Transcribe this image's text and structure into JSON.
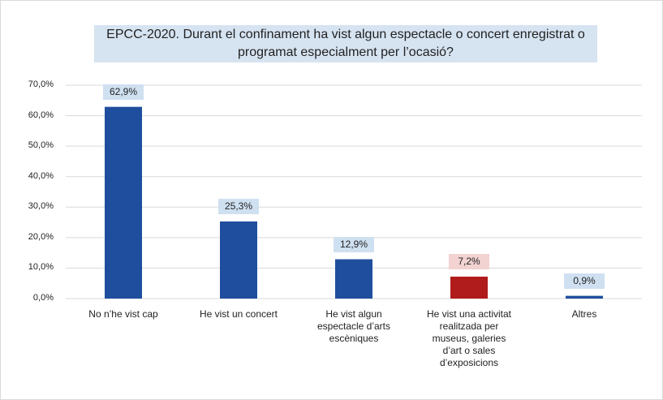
{
  "chart_data": {
    "type": "bar",
    "title": "EPCC-2020. Durant el confinament ha vist algun espectacle o concert enregistrat o programat especialment per l’ocasió?",
    "categories": [
      "No n’he vist cap",
      "He vist un concert",
      "He vist algun espectacle d’arts escèniques",
      "He vist una activitat realitzada per museus, galeries d’art o sales d’exposicions",
      "Altres"
    ],
    "values": [
      62.9,
      25.3,
      12.9,
      7.2,
      0.9
    ],
    "value_labels": [
      "62,9%",
      "25,3%",
      "12,9%",
      "7,2%",
      "0,9%"
    ],
    "colors": [
      "#1f4e9e",
      "#1f4e9e",
      "#1f4e9e",
      "#b01b1b",
      "#1f4e9e"
    ],
    "ylim": [
      0,
      70
    ],
    "yticks": [
      {
        "value": 0,
        "label": "0,0%"
      },
      {
        "value": 10,
        "label": "10,0%"
      },
      {
        "value": 20,
        "label": "20,0%"
      },
      {
        "value": 30,
        "label": "30,0%"
      },
      {
        "value": 40,
        "label": "40,0%"
      },
      {
        "value": 50,
        "label": "50,0%"
      },
      {
        "value": 60,
        "label": "60,0%"
      },
      {
        "value": 70,
        "label": "70,0%"
      }
    ],
    "grid": true
  }
}
